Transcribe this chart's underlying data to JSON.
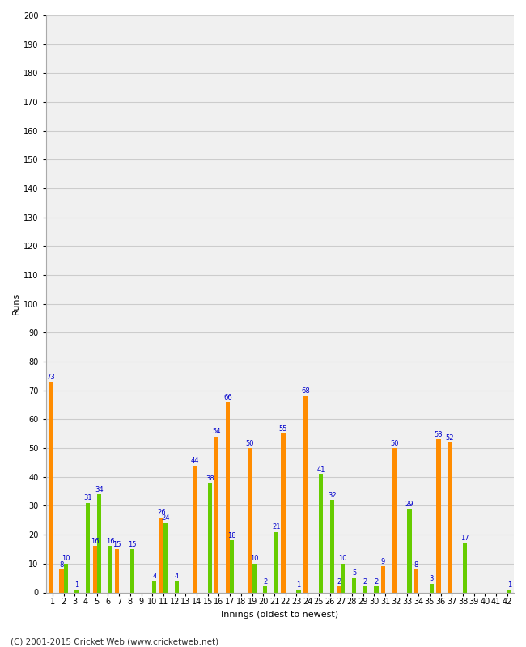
{
  "xlabel": "Innings (oldest to newest)",
  "ylabel": "Runs",
  "footer": "(C) 2001-2015 Cricket Web (www.cricketweb.net)",
  "ylim": [
    0,
    200
  ],
  "yticks": [
    0,
    10,
    20,
    30,
    40,
    50,
    60,
    70,
    80,
    90,
    100,
    110,
    120,
    130,
    140,
    150,
    160,
    170,
    180,
    190,
    200
  ],
  "innings": [
    1,
    2,
    3,
    4,
    5,
    6,
    7,
    8,
    9,
    10,
    11,
    12,
    13,
    14,
    15,
    16,
    17,
    18,
    19,
    20,
    21,
    22,
    23,
    24,
    25,
    26,
    27,
    28,
    29,
    30,
    31,
    32,
    33,
    34,
    35,
    36,
    37,
    38,
    39,
    40,
    41,
    42
  ],
  "orange_vals": [
    73,
    8,
    0,
    0,
    16,
    0,
    15,
    0,
    0,
    0,
    26,
    0,
    0,
    44,
    0,
    54,
    66,
    0,
    50,
    0,
    0,
    55,
    0,
    68,
    0,
    0,
    2,
    0,
    0,
    0,
    9,
    50,
    0,
    8,
    0,
    53,
    52,
    0,
    0,
    0,
    0,
    0
  ],
  "green_vals": [
    0,
    10,
    1,
    31,
    34,
    16,
    0,
    15,
    0,
    4,
    24,
    4,
    0,
    0,
    38,
    0,
    18,
    0,
    10,
    2,
    21,
    0,
    1,
    0,
    41,
    32,
    10,
    5,
    2,
    2,
    0,
    0,
    29,
    0,
    3,
    0,
    0,
    17,
    0,
    0,
    0,
    1
  ],
  "bar_color_orange": "#FF8C00",
  "bar_color_green": "#66CC00",
  "bg_color": "#FFFFFF",
  "plot_bg_color": "#F0F0F0",
  "grid_color": "#CCCCCC",
  "label_color": "#0000CC",
  "font_size_ticks": 7,
  "font_size_labels": 8,
  "font_size_footer": 7.5,
  "font_size_bar_label": 6
}
